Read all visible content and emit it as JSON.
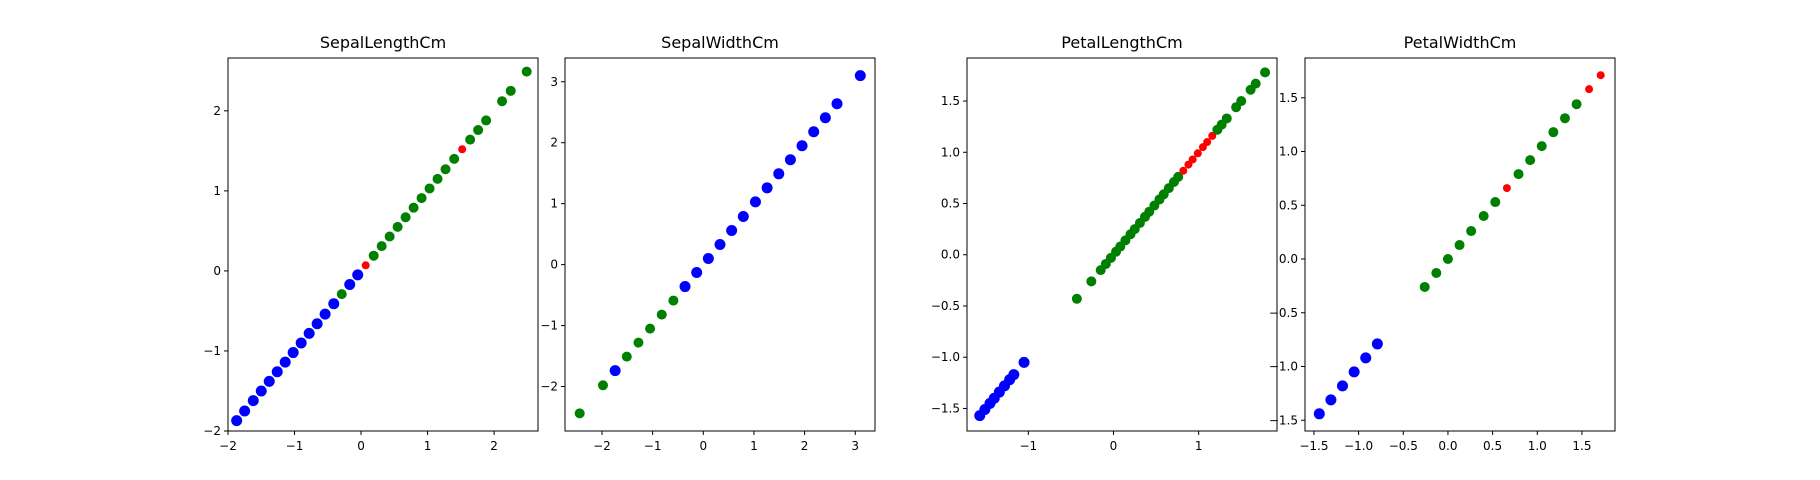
{
  "colors": {
    "blue": "#0000ff",
    "green": "#008000",
    "red": "#ff0000"
  },
  "chart_data": [
    {
      "type": "scatter",
      "title": "SepalLengthCm",
      "xlim": [
        -2.0,
        2.66
      ],
      "ylim": [
        -2.0,
        2.66
      ],
      "xticks": [
        -2,
        -1,
        0,
        1,
        2
      ],
      "yticks": [
        -2,
        -1,
        0,
        1,
        2
      ],
      "points": [
        [
          -1.87,
          -1.87,
          "blue"
        ],
        [
          -1.75,
          -1.75,
          "blue"
        ],
        [
          -1.62,
          -1.62,
          "blue"
        ],
        [
          -1.5,
          -1.5,
          "blue"
        ],
        [
          -1.38,
          -1.38,
          "blue"
        ],
        [
          -1.26,
          -1.26,
          "blue"
        ],
        [
          -1.14,
          -1.14,
          "blue"
        ],
        [
          -1.02,
          -1.02,
          "blue"
        ],
        [
          -0.9,
          -0.9,
          "blue"
        ],
        [
          -0.78,
          -0.78,
          "blue"
        ],
        [
          -0.66,
          -0.66,
          "blue"
        ],
        [
          -0.54,
          -0.54,
          "blue"
        ],
        [
          -0.41,
          -0.41,
          "blue"
        ],
        [
          -0.29,
          -0.29,
          "green"
        ],
        [
          -0.17,
          -0.17,
          "blue"
        ],
        [
          -0.05,
          -0.05,
          "blue"
        ],
        [
          0.07,
          0.07,
          "red"
        ],
        [
          0.19,
          0.19,
          "green"
        ],
        [
          0.31,
          0.31,
          "green"
        ],
        [
          0.43,
          0.43,
          "green"
        ],
        [
          0.55,
          0.55,
          "green"
        ],
        [
          0.67,
          0.67,
          "green"
        ],
        [
          0.79,
          0.79,
          "green"
        ],
        [
          0.91,
          0.91,
          "green"
        ],
        [
          1.03,
          1.03,
          "green"
        ],
        [
          1.15,
          1.15,
          "green"
        ],
        [
          1.27,
          1.27,
          "green"
        ],
        [
          1.4,
          1.4,
          "green"
        ],
        [
          1.52,
          1.52,
          "red"
        ],
        [
          1.64,
          1.64,
          "green"
        ],
        [
          1.76,
          1.76,
          "green"
        ],
        [
          1.88,
          1.88,
          "green"
        ],
        [
          2.12,
          2.12,
          "green"
        ],
        [
          2.25,
          2.25,
          "green"
        ],
        [
          2.49,
          2.49,
          "green"
        ]
      ]
    },
    {
      "type": "scatter",
      "title": "SepalWidthCm",
      "xlim": [
        -2.73,
        3.39
      ],
      "ylim": [
        -2.73,
        3.39
      ],
      "xticks": [
        -2,
        -1,
        0,
        1,
        2,
        3
      ],
      "yticks": [
        -2,
        -1,
        0,
        1,
        2,
        3
      ],
      "points": [
        [
          -2.44,
          -2.44,
          "green"
        ],
        [
          -1.98,
          -1.98,
          "green"
        ],
        [
          -1.74,
          -1.74,
          "blue"
        ],
        [
          -1.51,
          -1.51,
          "green"
        ],
        [
          -1.28,
          -1.28,
          "green"
        ],
        [
          -1.05,
          -1.05,
          "green"
        ],
        [
          -0.82,
          -0.82,
          "green"
        ],
        [
          -0.59,
          -0.59,
          "green"
        ],
        [
          -0.36,
          -0.36,
          "blue"
        ],
        [
          -0.13,
          -0.13,
          "blue"
        ],
        [
          0.1,
          0.1,
          "blue"
        ],
        [
          0.33,
          0.33,
          "blue"
        ],
        [
          0.56,
          0.56,
          "blue"
        ],
        [
          0.79,
          0.79,
          "blue"
        ],
        [
          1.03,
          1.03,
          "blue"
        ],
        [
          1.26,
          1.26,
          "blue"
        ],
        [
          1.49,
          1.49,
          "blue"
        ],
        [
          1.72,
          1.72,
          "blue"
        ],
        [
          1.95,
          1.95,
          "blue"
        ],
        [
          2.18,
          2.18,
          "blue"
        ],
        [
          2.41,
          2.41,
          "blue"
        ],
        [
          2.64,
          2.64,
          "blue"
        ],
        [
          3.1,
          3.1,
          "blue"
        ]
      ]
    },
    {
      "type": "scatter",
      "title": "PetalLengthCm",
      "xlim": [
        -1.72,
        1.92
      ],
      "ylim": [
        -1.72,
        1.92
      ],
      "xticks": [
        -1,
        0,
        1
      ],
      "yticks": [
        -1.5,
        -1.0,
        -0.5,
        0.0,
        0.5,
        1.0,
        1.5
      ],
      "points": [
        [
          -1.57,
          -1.57,
          "blue"
        ],
        [
          -1.51,
          -1.51,
          "blue"
        ],
        [
          -1.45,
          -1.45,
          "blue"
        ],
        [
          -1.4,
          -1.4,
          "blue"
        ],
        [
          -1.34,
          -1.34,
          "blue"
        ],
        [
          -1.28,
          -1.28,
          "blue"
        ],
        [
          -1.22,
          -1.22,
          "blue"
        ],
        [
          -1.17,
          -1.17,
          "blue"
        ],
        [
          -1.05,
          -1.05,
          "blue"
        ],
        [
          -0.43,
          -0.43,
          "green"
        ],
        [
          -0.26,
          -0.26,
          "green"
        ],
        [
          -0.15,
          -0.15,
          "green"
        ],
        [
          -0.09,
          -0.09,
          "green"
        ],
        [
          -0.03,
          -0.03,
          "green"
        ],
        [
          0.03,
          0.03,
          "green"
        ],
        [
          0.08,
          0.08,
          "green"
        ],
        [
          0.14,
          0.14,
          "green"
        ],
        [
          0.2,
          0.2,
          "green"
        ],
        [
          0.25,
          0.25,
          "green"
        ],
        [
          0.31,
          0.31,
          "green"
        ],
        [
          0.37,
          0.37,
          "green"
        ],
        [
          0.42,
          0.42,
          "green"
        ],
        [
          0.48,
          0.48,
          "green"
        ],
        [
          0.54,
          0.54,
          "green"
        ],
        [
          0.59,
          0.59,
          "green"
        ],
        [
          0.65,
          0.65,
          "green"
        ],
        [
          0.71,
          0.71,
          "green"
        ],
        [
          0.76,
          0.76,
          "green"
        ],
        [
          0.82,
          0.82,
          "red"
        ],
        [
          0.88,
          0.88,
          "red"
        ],
        [
          0.93,
          0.93,
          "red"
        ],
        [
          0.99,
          0.99,
          "red"
        ],
        [
          1.05,
          1.05,
          "red"
        ],
        [
          1.1,
          1.1,
          "red"
        ],
        [
          1.16,
          1.16,
          "red"
        ],
        [
          1.22,
          1.22,
          "green"
        ],
        [
          1.27,
          1.27,
          "green"
        ],
        [
          1.33,
          1.33,
          "green"
        ],
        [
          1.44,
          1.44,
          "green"
        ],
        [
          1.5,
          1.5,
          "green"
        ],
        [
          1.61,
          1.61,
          "green"
        ],
        [
          1.67,
          1.67,
          "green"
        ],
        [
          1.78,
          1.78,
          "green"
        ]
      ]
    },
    {
      "type": "scatter",
      "title": "PetalWidthCm",
      "xlim": [
        -1.6,
        1.87
      ],
      "ylim": [
        -1.6,
        1.87
      ],
      "xticks": [
        -1.5,
        -1.0,
        -0.5,
        0.0,
        0.5,
        1.0,
        1.5
      ],
      "yticks": [
        -1.5,
        -1.0,
        -0.5,
        0.0,
        0.5,
        1.0,
        1.5
      ],
      "points": [
        [
          -1.44,
          -1.44,
          "blue"
        ],
        [
          -1.31,
          -1.31,
          "blue"
        ],
        [
          -1.18,
          -1.18,
          "blue"
        ],
        [
          -1.05,
          -1.05,
          "blue"
        ],
        [
          -0.92,
          -0.92,
          "blue"
        ],
        [
          -0.79,
          -0.79,
          "blue"
        ],
        [
          -0.26,
          -0.26,
          "green"
        ],
        [
          -0.13,
          -0.13,
          "green"
        ],
        [
          0.0,
          0.0,
          "green"
        ],
        [
          0.13,
          0.13,
          "green"
        ],
        [
          0.26,
          0.26,
          "green"
        ],
        [
          0.4,
          0.4,
          "green"
        ],
        [
          0.53,
          0.53,
          "green"
        ],
        [
          0.66,
          0.66,
          "red"
        ],
        [
          0.79,
          0.79,
          "green"
        ],
        [
          0.92,
          0.92,
          "green"
        ],
        [
          1.05,
          1.05,
          "green"
        ],
        [
          1.18,
          1.18,
          "green"
        ],
        [
          1.31,
          1.31,
          "green"
        ],
        [
          1.44,
          1.44,
          "green"
        ],
        [
          1.58,
          1.58,
          "red"
        ],
        [
          1.71,
          1.71,
          "red"
        ]
      ]
    }
  ]
}
